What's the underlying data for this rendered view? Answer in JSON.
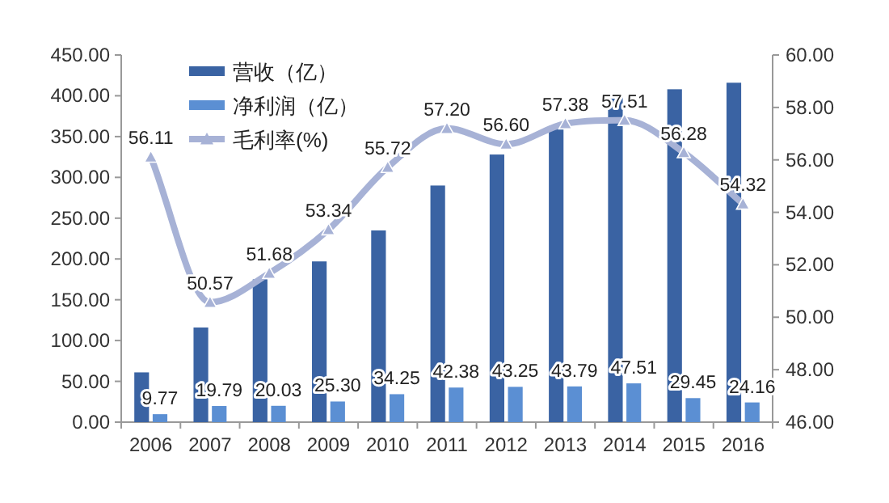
{
  "chart_data": {
    "type": "bar",
    "categories": [
      "2006",
      "2007",
      "2008",
      "2009",
      "2010",
      "2011",
      "2012",
      "2013",
      "2014",
      "2015",
      "2016"
    ],
    "series": [
      {
        "name": "营收（亿）",
        "color": "#3a63a3",
        "values": [
          61,
          116,
          175,
          197,
          235,
          290,
          328,
          363,
          400,
          408,
          416
        ]
      },
      {
        "name": "净利润（亿）",
        "color": "#5b8fd3",
        "values": [
          9.77,
          19.79,
          20.03,
          25.3,
          34.25,
          42.38,
          43.25,
          43.79,
          47.51,
          29.45,
          24.16
        ],
        "value_labels": [
          "9.77",
          "19.79",
          "20.03",
          "25.30",
          "34.25",
          "42.38",
          "43.25",
          "43.79",
          "47.51",
          "29.45",
          "24.16"
        ]
      },
      {
        "name": "毛利率(%)",
        "type": "line",
        "axis": "y2",
        "color": "#a7b2d6",
        "marker": "triangle",
        "values": [
          56.11,
          50.57,
          51.68,
          53.34,
          55.72,
          57.2,
          56.6,
          57.38,
          57.51,
          56.28,
          54.32
        ],
        "value_labels": [
          "56.11",
          "50.57",
          "51.68",
          "53.34",
          "55.72",
          "57.20",
          "56.60",
          "57.38",
          "57.51",
          "56.28",
          "54.32"
        ]
      }
    ],
    "ylim": [
      0,
      450
    ],
    "yticks": [
      {
        "value": 0,
        "label": "0.00"
      },
      {
        "value": 50,
        "label": "50.00"
      },
      {
        "value": 100,
        "label": "100.00"
      },
      {
        "value": 150,
        "label": "150.00"
      },
      {
        "value": 200,
        "label": "200.00"
      },
      {
        "value": 250,
        "label": "250.00"
      },
      {
        "value": 300,
        "label": "300.00"
      },
      {
        "value": 350,
        "label": "350.00"
      },
      {
        "value": 400,
        "label": "400.00"
      },
      {
        "value": 450,
        "label": "450.00"
      }
    ],
    "y2lim": [
      46,
      60
    ],
    "y2ticks": [
      {
        "value": 46,
        "label": "46.00"
      },
      {
        "value": 48,
        "label": "48.00"
      },
      {
        "value": 50,
        "label": "50.00"
      },
      {
        "value": 52,
        "label": "52.00"
      },
      {
        "value": 54,
        "label": "54.00"
      },
      {
        "value": 56,
        "label": "56.00"
      },
      {
        "value": 58,
        "label": "58.00"
      },
      {
        "value": 60,
        "label": "60.00"
      }
    ],
    "legend": "top left",
    "grid": false
  }
}
